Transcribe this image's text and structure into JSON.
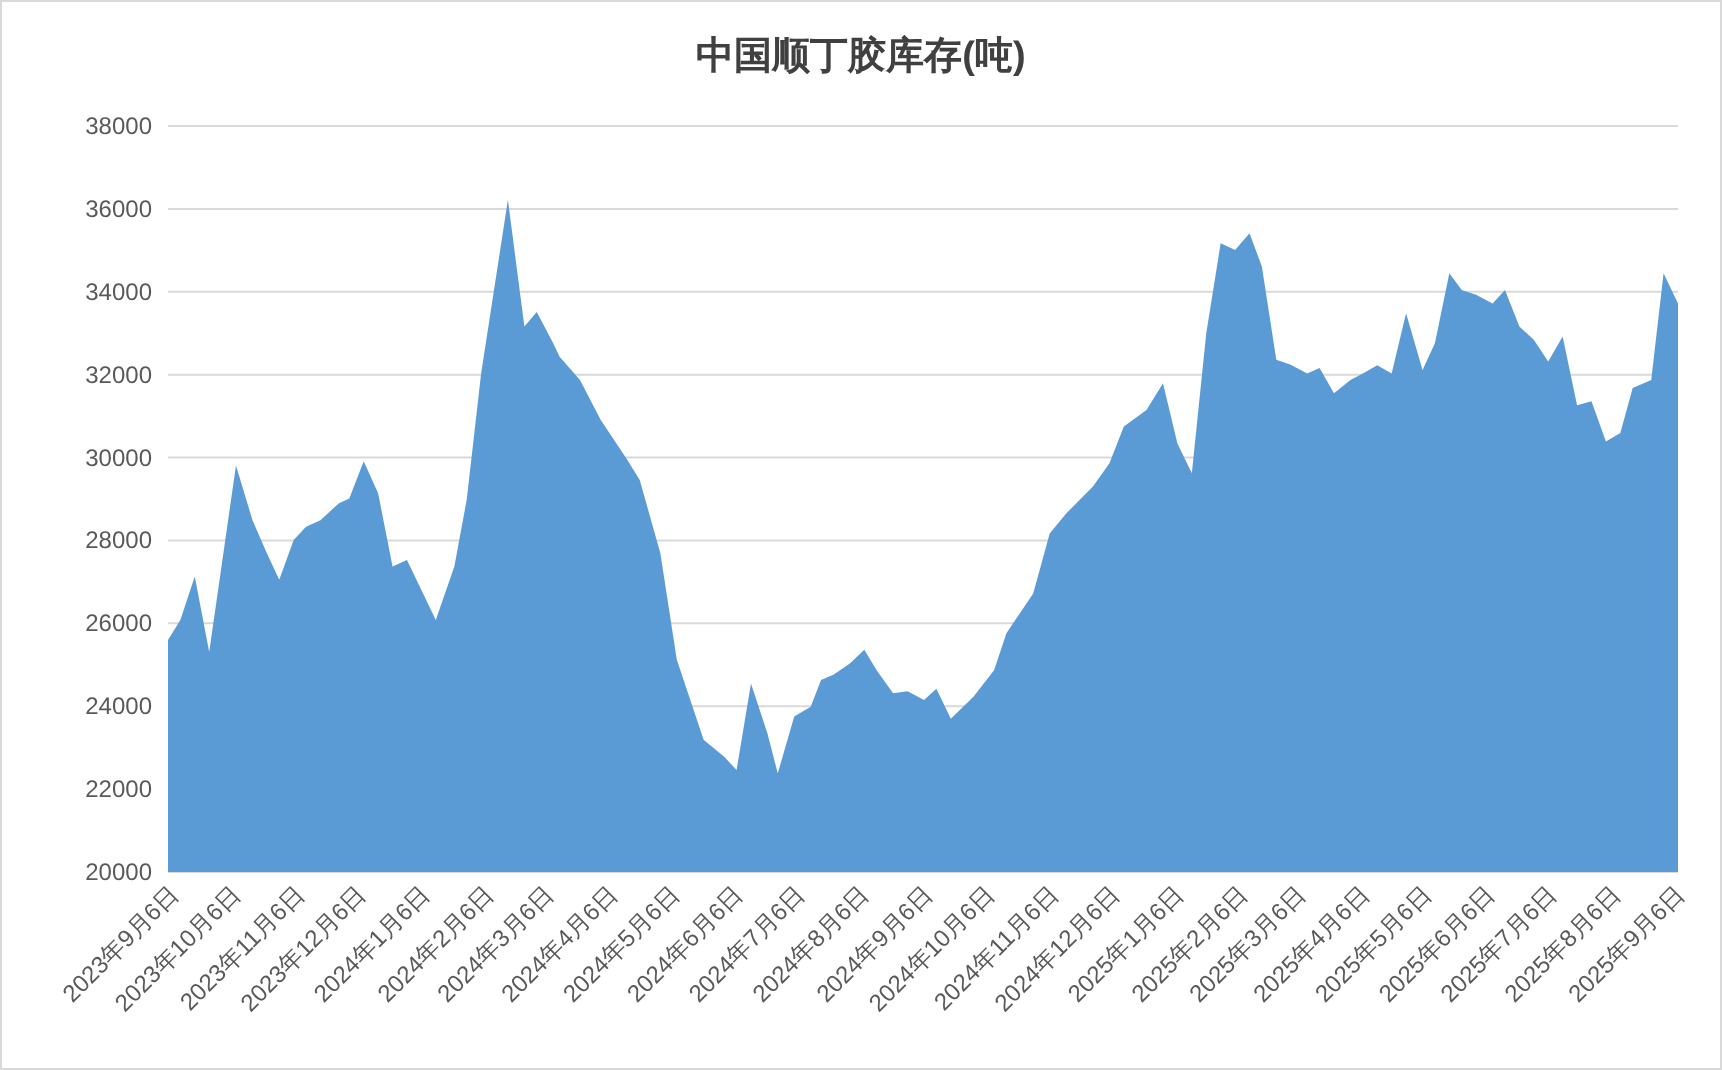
{
  "chart_data": {
    "type": "area",
    "title": "中国顺丁胶库存(吨)",
    "color": "#5b9bd5",
    "grid": "y",
    "x": [
      "2023-09-06",
      "2023-09-12",
      "2023-09-19",
      "2023-09-26",
      "2023-10-09",
      "2023-10-17",
      "2023-10-24",
      "2023-10-30",
      "2023-11-06",
      "2023-11-12",
      "2023-11-19",
      "2023-11-28",
      "2023-12-03",
      "2023-12-10",
      "2023-12-17",
      "2023-12-24",
      "2023-12-31",
      "2024-01-14",
      "2024-01-23",
      "2024-01-29",
      "2024-02-05",
      "2024-02-11",
      "2024-02-18",
      "2024-02-26",
      "2024-03-03",
      "2024-03-11",
      "2024-03-14",
      "2024-03-24",
      "2024-04-03",
      "2024-04-16",
      "2024-04-22",
      "2024-05-02",
      "2024-05-10",
      "2024-05-23",
      "2024-06-02",
      "2024-06-08",
      "2024-06-15",
      "2024-06-23",
      "2024-06-28",
      "2024-07-06",
      "2024-07-14",
      "2024-07-19",
      "2024-07-25",
      "2024-08-02",
      "2024-08-09",
      "2024-08-15",
      "2024-08-23",
      "2024-08-30",
      "2024-09-07",
      "2024-09-13",
      "2024-09-20",
      "2024-10-01",
      "2024-10-11",
      "2024-10-17",
      "2024-10-30",
      "2024-11-07",
      "2024-11-15",
      "2024-11-28",
      "2024-12-06",
      "2024-12-13",
      "2024-12-24",
      "2025-01-01",
      "2025-01-08",
      "2025-01-15",
      "2025-01-22",
      "2025-01-29",
      "2025-02-05",
      "2025-02-12",
      "2025-02-18",
      "2025-02-25",
      "2025-03-04",
      "2025-03-12",
      "2025-03-18",
      "2025-03-25",
      "2025-04-02",
      "2025-04-08",
      "2025-04-15",
      "2025-04-22",
      "2025-04-29",
      "2025-05-07",
      "2025-05-13",
      "2025-05-20",
      "2025-05-26",
      "2025-06-02",
      "2025-06-10",
      "2025-06-16",
      "2025-06-23",
      "2025-06-30",
      "2025-07-07",
      "2025-07-14",
      "2025-07-21",
      "2025-07-28",
      "2025-08-04",
      "2025-08-11",
      "2025-08-17",
      "2025-08-26",
      "2025-09-01",
      "2025-09-08"
    ],
    "values": [
      25600,
      26080,
      27130,
      25310,
      29810,
      28490,
      27690,
      27050,
      28010,
      28330,
      28490,
      28900,
      29010,
      29910,
      29140,
      27370,
      27530,
      26080,
      27370,
      28980,
      32030,
      33960,
      36220,
      33160,
      33510,
      32760,
      32440,
      31870,
      30910,
      29940,
      29460,
      27690,
      25120,
      23190,
      22780,
      22460,
      24550,
      23340,
      22380,
      23750,
      23990,
      24630,
      24760,
      25030,
      25360,
      24870,
      24310,
      24360,
      24150,
      24420,
      23700,
      24230,
      24870,
      25760,
      26720,
      28170,
      28650,
      29300,
      29860,
      30750,
      31150,
      31790,
      30340,
      29620,
      33000,
      35170,
      35010,
      35410,
      34610,
      32360,
      32240,
      32030,
      32160,
      31550,
      31870,
      32030,
      32230,
      32030,
      33480,
      32110,
      32760,
      34450,
      34040,
      33930,
      33720,
      34040,
      33160,
      32840,
      32320,
      32920,
      31260,
      31360,
      30390,
      30590,
      31680,
      31870,
      34450,
      33720
    ],
    "xlim": [
      "2023-09-06",
      "2025-09-08"
    ],
    "xticks": [
      {
        "value": "2023-09-06",
        "label": "2023年9月6日"
      },
      {
        "value": "2023-10-06",
        "label": "2023年10月6日"
      },
      {
        "value": "2023-11-06",
        "label": "2023年11月6日"
      },
      {
        "value": "2023-12-06",
        "label": "2023年12月6日"
      },
      {
        "value": "2024-01-06",
        "label": "2024年1月6日"
      },
      {
        "value": "2024-02-06",
        "label": "2024年2月6日"
      },
      {
        "value": "2024-03-06",
        "label": "2024年3月6日"
      },
      {
        "value": "2024-04-06",
        "label": "2024年4月6日"
      },
      {
        "value": "2024-05-06",
        "label": "2024年5月6日"
      },
      {
        "value": "2024-06-06",
        "label": "2024年6月6日"
      },
      {
        "value": "2024-07-06",
        "label": "2024年7月6日"
      },
      {
        "value": "2024-08-06",
        "label": "2024年8月6日"
      },
      {
        "value": "2024-09-06",
        "label": "2024年9月6日"
      },
      {
        "value": "2024-10-06",
        "label": "2024年10月6日"
      },
      {
        "value": "2024-11-06",
        "label": "2024年11月6日"
      },
      {
        "value": "2024-12-06",
        "label": "2024年12月6日"
      },
      {
        "value": "2025-01-06",
        "label": "2025年1月6日"
      },
      {
        "value": "2025-02-06",
        "label": "2025年2月6日"
      },
      {
        "value": "2025-03-06",
        "label": "2025年3月6日"
      },
      {
        "value": "2025-04-06",
        "label": "2025年4月6日"
      },
      {
        "value": "2025-05-06",
        "label": "2025年5月6日"
      },
      {
        "value": "2025-06-06",
        "label": "2025年6月6日"
      },
      {
        "value": "2025-07-06",
        "label": "2025年7月6日"
      },
      {
        "value": "2025-08-06",
        "label": "2025年8月6日"
      },
      {
        "value": "2025-09-06",
        "label": "2025年9月6日"
      }
    ],
    "ylim": [
      20000,
      38000
    ],
    "yticks": [
      20000,
      22000,
      24000,
      26000,
      28000,
      30000,
      32000,
      34000,
      36000,
      38000
    ]
  }
}
